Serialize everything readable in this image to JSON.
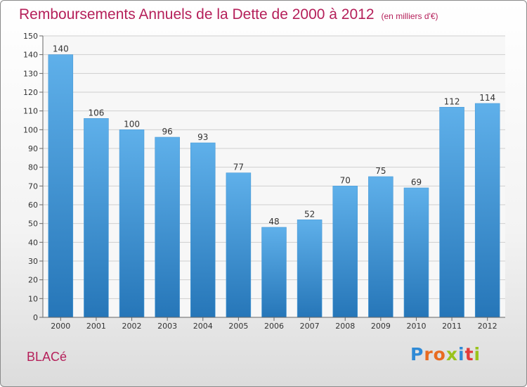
{
  "header": {
    "title": "Remboursements Annuels de la Dette de 2000 à 2012",
    "subtitle": "(en milliers d'€)"
  },
  "commune": "BLACé",
  "logo": {
    "text": "Proxiti",
    "letter_colors": [
      "#2f8ad6",
      "#e86b20",
      "#e86b20",
      "#9ac31c",
      "#2f8ad6",
      "#e23a3a",
      "#9ac31c"
    ]
  },
  "colors": {
    "bar_top": "#5fb0ea",
    "bar_bottom": "#2676b8",
    "title": "#b5205a"
  },
  "chart_data": {
    "type": "bar",
    "categories": [
      "2000",
      "2001",
      "2002",
      "2003",
      "2004",
      "2005",
      "2006",
      "2007",
      "2008",
      "2009",
      "2010",
      "2011",
      "2012"
    ],
    "values": [
      140,
      106,
      100,
      96,
      93,
      77,
      48,
      52,
      70,
      75,
      69,
      112,
      114
    ],
    "ylim": [
      0,
      150
    ],
    "yticks": [
      0,
      10,
      20,
      30,
      40,
      50,
      60,
      70,
      80,
      90,
      100,
      110,
      120,
      130,
      140,
      150
    ],
    "grid": true,
    "data_labels": true
  }
}
